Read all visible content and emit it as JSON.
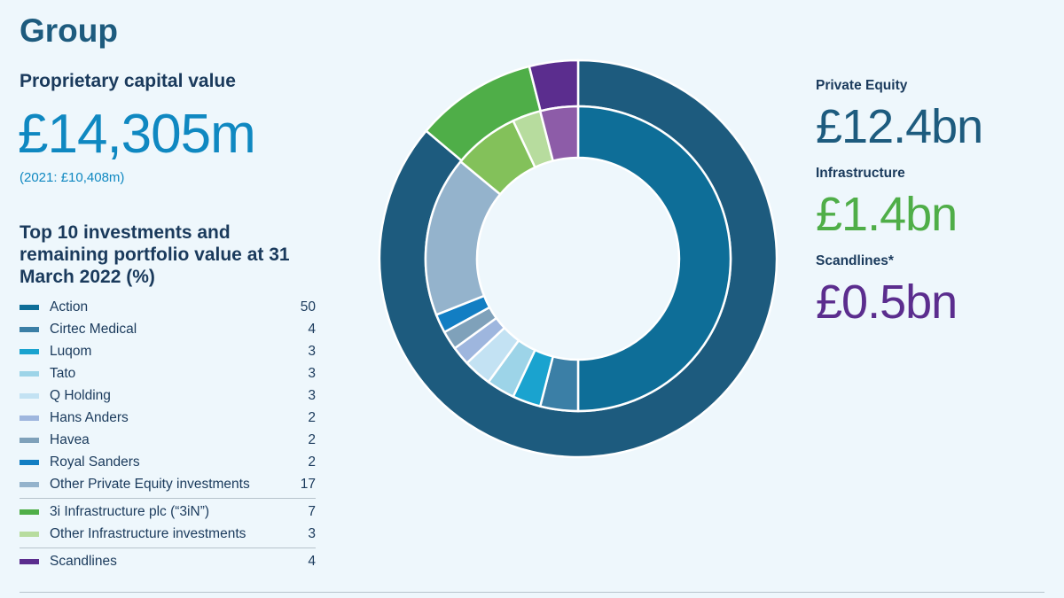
{
  "title": "Group",
  "proprietary_capital": {
    "label": "Proprietary capital value",
    "value": "£14,305m",
    "prior": "(2021: £10,408m)"
  },
  "legend_heading": "Top 10 investments and remaining portfolio value at 31 March 2022 (%)",
  "segment_totals": [
    {
      "label": "Private Equity",
      "value": "£12.4bn",
      "color": "#1d5b7e"
    },
    {
      "label": "Infrastructure",
      "value": "£1.4bn",
      "color": "#4fae48"
    },
    {
      "label": "Scandlines*",
      "value": "£0.5bn",
      "color": "#5b2d8e"
    }
  ],
  "chart_data": {
    "type": "pie",
    "subtype": "nested-donut",
    "outer_ring": [
      {
        "segment": "Private Equity",
        "value": 87,
        "color": "#1d5b7e"
      },
      {
        "segment": "Infrastructure",
        "value": 10,
        "color": "#4fae48"
      },
      {
        "segment": "Scandlines",
        "value": 4,
        "color": "#5b2d8e"
      }
    ],
    "inner_ring": [
      {
        "name": "Action",
        "value": 50,
        "color": "#0e6e98"
      },
      {
        "name": "Cirtec Medical",
        "value": 4,
        "color": "#3b7fa6"
      },
      {
        "name": "Luqom",
        "value": 3,
        "color": "#1aa3cf"
      },
      {
        "name": "Tato",
        "value": 3,
        "color": "#9dd4e8"
      },
      {
        "name": "Q Holding",
        "value": 3,
        "color": "#c3e2f3"
      },
      {
        "name": "Hans Anders",
        "value": 2,
        "color": "#9eb6de"
      },
      {
        "name": "Havea",
        "value": 2,
        "color": "#7fa1ba"
      },
      {
        "name": "Royal Sanders",
        "value": 2,
        "color": "#127ec3"
      },
      {
        "name": "Other Private Equity investments",
        "value": 17,
        "color": "#94b3cc"
      },
      {
        "name": "3i Infrastructure plc (“3iN”)",
        "value": 7,
        "color": "#4fae48",
        "separator": true
      },
      {
        "name": "Other Infrastructure investments",
        "value": 3,
        "color": "#b7dc9e"
      },
      {
        "name": "Scandlines",
        "value": 4,
        "color": "#5b2d8e",
        "separator": true
      }
    ],
    "inner_ring_colors": [
      "#0e6e98",
      "#3b7fa6",
      "#1aa3cf",
      "#9dd4e8",
      "#c3e2f3",
      "#9eb6de",
      "#7fa1ba",
      "#127ec3",
      "#94b3cc",
      "#83c15a",
      "#b7dc9e",
      "#8d5ca8"
    ]
  }
}
